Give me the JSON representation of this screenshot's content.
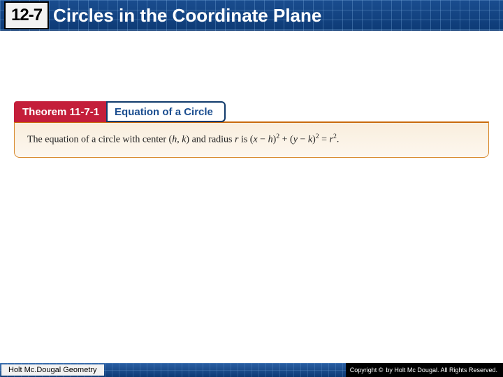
{
  "header": {
    "lesson_number": "12-7",
    "title": "Circles in the Coordinate Plane",
    "background_color": "#0d3a75",
    "grid_color": "rgba(120,170,220,0.35)"
  },
  "theorem": {
    "badge": "Theorem 11-7-1",
    "badge_bg": "#c41e3a",
    "title": "Equation of a Circle",
    "title_color": "#1a4d8f",
    "body_prefix": "The equation of a circle with center (",
    "center_h": "h",
    "comma_sep": ", ",
    "center_k": "k",
    "body_mid": ") and radius ",
    "radius_var": "r",
    "body_is": " is (",
    "x_var": "x",
    "minus1": " − ",
    "h_var2": "h",
    "close1": ")",
    "sq1": "2",
    "plus": " + (",
    "y_var": "y",
    "minus2": " − ",
    "k_var2": "k",
    "close2": ")",
    "sq2": "2",
    "equals": " = ",
    "r_var2": "r",
    "sq3": "2",
    "period": ".",
    "body_bg": "#f9eedd",
    "body_border": "#d88a2e"
  },
  "footer": {
    "left": "Holt Mc.Dougal Geometry",
    "copyright_symbol": "C",
    "copyright_label": "Copyright ©",
    "copyright_text": "by Holt Mc Dougal. All Rights Reserved.",
    "background_color": "#0d3a75"
  }
}
